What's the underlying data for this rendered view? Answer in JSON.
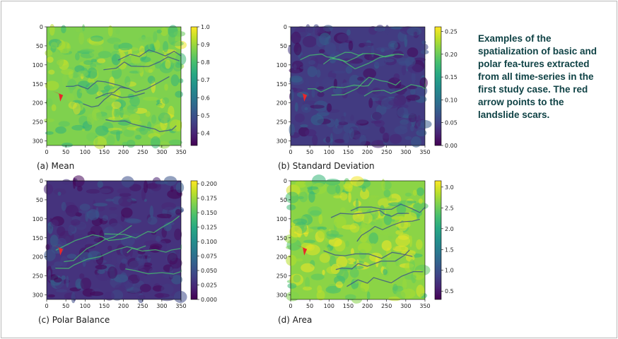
{
  "caption_text": "Examples of the spatialization of basic and polar fea-tures extracted from all time-series in the first study case. The red arrow points to the landslide scars.",
  "colormap": "viridis",
  "arrow_color": "#e8272a",
  "panels": [
    {
      "label": "(a) Mean",
      "x_ticks": [
        "0",
        "50",
        "100",
        "150",
        "200",
        "250",
        "300",
        "350"
      ],
      "y_ticks": [
        "0",
        "50",
        "100",
        "150",
        "200",
        "250",
        "300"
      ],
      "colorbar_ticks": [
        "1.0",
        "0.9",
        "0.8",
        "0.7",
        "0.6",
        "0.5",
        "0.4"
      ],
      "colorbar_range": [
        0.33,
        1.0
      ],
      "base_value": 0.87
    },
    {
      "label": "(b) Standard Deviation",
      "x_ticks": [
        "0",
        "50",
        "100",
        "150",
        "200",
        "250",
        "300",
        "350"
      ],
      "y_ticks": [
        "0",
        "50",
        "100",
        "150",
        "200",
        "250",
        "300"
      ],
      "colorbar_ticks": [
        "0.25",
        "0.20",
        "0.15",
        "0.10",
        "0.05",
        "0.00"
      ],
      "colorbar_range": [
        0.0,
        0.26
      ],
      "base_value": 0.045
    },
    {
      "label": "(c) Polar Balance",
      "x_ticks": [
        "0",
        "50",
        "100",
        "150",
        "200",
        "250",
        "300",
        "350"
      ],
      "y_ticks": [
        "0",
        "50",
        "100",
        "150",
        "200",
        "250",
        "300"
      ],
      "colorbar_ticks": [
        "0.200",
        "0.175",
        "0.150",
        "0.125",
        "0.100",
        "0.075",
        "0.050",
        "0.025",
        "0.000"
      ],
      "colorbar_range": [
        0.0,
        0.205
      ],
      "base_value": 0.03
    },
    {
      "label": "(d) Area",
      "x_ticks": [
        "0",
        "50",
        "100",
        "150",
        "200",
        "250",
        "300",
        "350"
      ],
      "y_ticks": [
        "0",
        "50",
        "100",
        "150",
        "200",
        "250",
        "300"
      ],
      "colorbar_ticks": [
        "3.0",
        "2.5",
        "2.0",
        "1.5",
        "1.0",
        "0.5"
      ],
      "colorbar_range": [
        0.3,
        3.15
      ],
      "base_value": 2.65
    }
  ]
}
